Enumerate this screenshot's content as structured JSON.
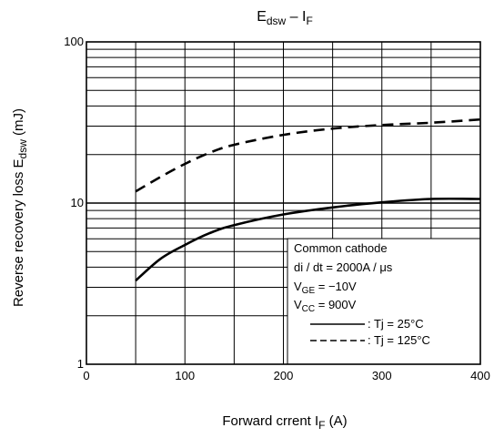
{
  "chart_data": {
    "type": "line",
    "title": {
      "main": "E",
      "main_sub": "dsw",
      "sep": " – I",
      "sep_sub": "F"
    },
    "xlabel": {
      "main": "Forward crrent   I",
      "sub": "F",
      "unit": "   (A)"
    },
    "ylabel": {
      "main": "Reverse recovery loss   E",
      "sub": "dsw",
      "unit": "   (mJ)"
    },
    "xlim": [
      0,
      400
    ],
    "ylim": [
      1,
      100
    ],
    "yscale": "log",
    "grid": true,
    "x_ticks": [
      {
        "value": 0,
        "label": "0"
      },
      {
        "value": 100,
        "label": "100"
      },
      {
        "value": 200,
        "label": "200"
      },
      {
        "value": 300,
        "label": "300"
      },
      {
        "value": 400,
        "label": "400"
      }
    ],
    "y_ticks": [
      {
        "value": 1,
        "label": "1"
      },
      {
        "value": 10,
        "label": "10"
      },
      {
        "value": 100,
        "label": "100"
      }
    ],
    "series": [
      {
        "name": ": Tj = 25°C",
        "style": "solid",
        "x": [
          50,
          75,
          100,
          125,
          150,
          200,
          250,
          300,
          350,
          400
        ],
        "y": [
          3.3,
          4.5,
          5.5,
          6.5,
          7.3,
          8.5,
          9.4,
          10.1,
          10.6,
          10.6
        ]
      },
      {
        "name": ": Tj = 125°C",
        "style": "dashed",
        "x": [
          50,
          75,
          100,
          125,
          150,
          200,
          250,
          300,
          350,
          400
        ],
        "y": [
          11.8,
          14.5,
          17.5,
          20.5,
          23,
          26.5,
          29,
          30.5,
          31.5,
          33
        ]
      }
    ],
    "annotation": {
      "lines": [
        {
          "main": "Common cathode",
          "sub": "",
          "rest": ""
        },
        {
          "main": "di / dt = 2000A / μs",
          "sub": "",
          "rest": ""
        },
        {
          "main": "V",
          "sub": "GE",
          "rest": " = −10V"
        },
        {
          "main": "V",
          "sub": "CC",
          "rest": " = 900V"
        }
      ]
    }
  }
}
